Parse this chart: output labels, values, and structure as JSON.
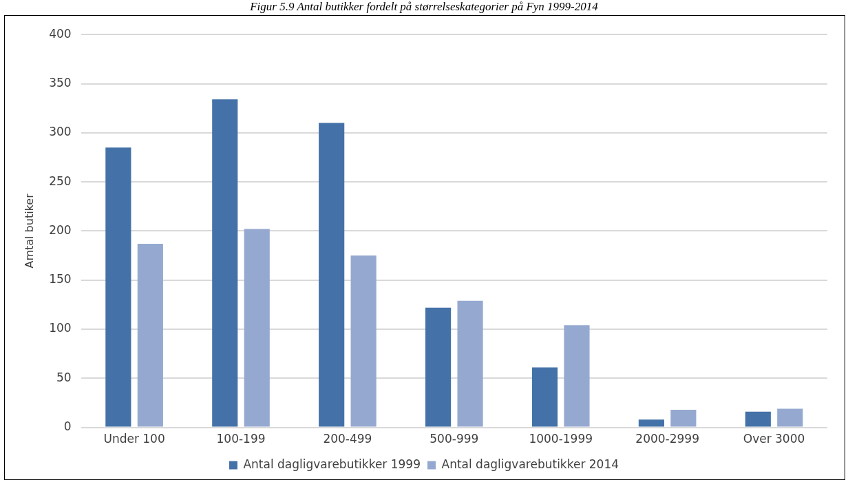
{
  "chart_data": {
    "type": "bar",
    "title": "Figur 5.9 Antal butikker fordelt på størrelseskategorier på Fyn 1999-2014",
    "ylabel": "Amtal butiker",
    "categories": [
      "Under 100",
      "100-199",
      "200-499",
      "500-999",
      "1000-1999",
      "2000-2999",
      "Over 3000"
    ],
    "series": [
      {
        "name": "Antal dagligvarebutikker 1999",
        "color": "#4472a8",
        "values": [
          285,
          334,
          310,
          122,
          61,
          8,
          16
        ]
      },
      {
        "name": "Antal dagligvarebutikker 2014",
        "color": "#95a9d0",
        "values": [
          187,
          202,
          175,
          129,
          104,
          18,
          19
        ]
      }
    ],
    "ylim": [
      0,
      400
    ],
    "yticks": [
      0,
      50,
      100,
      150,
      200,
      250,
      300,
      350,
      400
    ],
    "grid": "y",
    "legend": "bottom"
  }
}
